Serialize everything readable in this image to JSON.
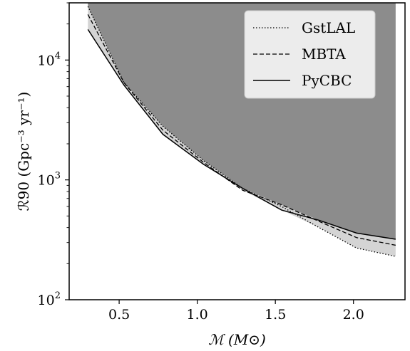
{
  "chart_data": {
    "type": "line",
    "title": "",
    "xlabel": "ℳ (M⊙)",
    "ylabel": "ℛ90 (Gpc⁻³ yr⁻¹)",
    "xlim": [
      0.18,
      2.33
    ],
    "ylim": [
      100,
      30000
    ],
    "yscale": "log",
    "grid": false,
    "legend_position": "top-right",
    "x_ticks": [
      {
        "value": 0.5,
        "label": "0.5"
      },
      {
        "value": 1.0,
        "label": "1.0"
      },
      {
        "value": 1.5,
        "label": "1.5"
      },
      {
        "value": 2.0,
        "label": "2.0"
      }
    ],
    "y_ticks": [
      {
        "value": 100,
        "base": "10",
        "exp": "2"
      },
      {
        "value": 1000,
        "base": "10",
        "exp": "3"
      },
      {
        "value": 10000,
        "base": "10",
        "exp": "4"
      }
    ],
    "series": [
      {
        "name": "GstLAL",
        "style": "dotted",
        "x": [
          0.3,
          0.53,
          0.78,
          1.04,
          1.29,
          1.54,
          1.78,
          2.02,
          2.27
        ],
        "y": [
          28000,
          6500,
          2800,
          1450,
          850,
          600,
          400,
          270,
          230
        ]
      },
      {
        "name": "MBTA",
        "style": "dashed",
        "x": [
          0.3,
          0.53,
          0.78,
          1.04,
          1.29,
          1.54,
          1.78,
          2.02,
          2.27
        ],
        "y": [
          24000,
          6500,
          2600,
          1400,
          820,
          620,
          450,
          330,
          285
        ]
      },
      {
        "name": "PyCBC",
        "style": "solid",
        "x": [
          0.3,
          0.53,
          0.78,
          1.04,
          1.29,
          1.54,
          1.78,
          2.02,
          2.27
        ],
        "y": [
          18000,
          6200,
          2400,
          1350,
          850,
          560,
          460,
          360,
          320
        ]
      }
    ],
    "colors": {
      "excluded_region": "#8c8c8c",
      "spread_band": "#d4d4d4",
      "lines": "#000000",
      "legend_bg": "#ececec"
    }
  }
}
